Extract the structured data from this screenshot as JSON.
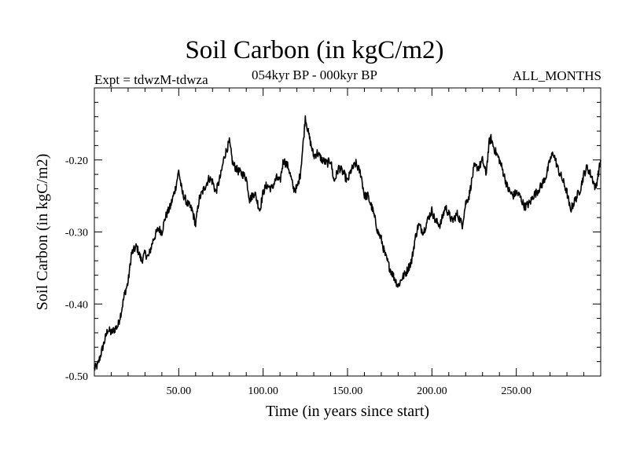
{
  "chart_data": {
    "type": "line",
    "title": "Soil Carbon (in kgC/m2)",
    "subtitle": "054kyr BP - 000kyr BP",
    "left_note": "Expt = tdwzM-tdwza",
    "right_note": "ALL_MONTHS",
    "xlabel": "Time (in years since start)",
    "ylabel": "Soil Carbon (in kgC/m2)",
    "xlim": [
      0,
      300
    ],
    "ylim": [
      -0.5,
      -0.1
    ],
    "x_ticks": [
      50,
      100,
      150,
      200,
      250
    ],
    "x_tick_labels": [
      "50.00",
      "100.00",
      "150.00",
      "200.00",
      "250.00"
    ],
    "y_ticks": [
      -0.5,
      -0.4,
      -0.3,
      -0.2
    ],
    "y_tick_labels": [
      "-0.50",
      "-0.40",
      "-0.30",
      "-0.20"
    ],
    "grid": false,
    "series": [
      {
        "x": [
          0,
          2,
          5,
          8,
          10,
          12,
          14,
          16,
          18,
          20,
          22,
          25,
          28,
          30,
          32,
          35,
          38,
          40,
          42,
          45,
          48,
          50,
          52,
          55,
          58,
          60,
          62,
          65,
          68,
          70,
          72,
          75,
          77,
          80,
          82,
          85,
          88,
          90,
          92,
          95,
          98,
          100,
          102,
          105,
          108,
          110,
          112,
          115,
          118,
          120,
          122,
          124,
          125,
          127,
          130,
          132,
          135,
          138,
          140,
          142,
          145,
          148,
          150,
          152,
          155,
          158,
          160,
          162,
          165,
          168,
          170,
          172,
          175,
          178,
          180,
          182,
          185,
          188,
          190,
          192,
          195,
          198,
          200,
          202,
          205,
          208,
          210,
          212,
          215,
          218,
          220,
          222,
          225,
          228,
          230,
          232,
          234,
          235,
          237,
          240,
          242,
          245,
          248,
          250,
          252,
          255,
          258,
          260,
          262,
          265,
          268,
          270,
          272,
          275,
          277,
          280,
          282,
          285,
          288,
          290,
          292,
          295,
          297,
          300
        ],
        "y": [
          -0.49,
          -0.485,
          -0.46,
          -0.435,
          -0.44,
          -0.435,
          -0.43,
          -0.41,
          -0.385,
          -0.37,
          -0.33,
          -0.32,
          -0.34,
          -0.33,
          -0.335,
          -0.31,
          -0.295,
          -0.3,
          -0.28,
          -0.265,
          -0.24,
          -0.215,
          -0.245,
          -0.26,
          -0.27,
          -0.29,
          -0.255,
          -0.24,
          -0.225,
          -0.23,
          -0.245,
          -0.22,
          -0.195,
          -0.175,
          -0.205,
          -0.215,
          -0.22,
          -0.225,
          -0.255,
          -0.245,
          -0.27,
          -0.245,
          -0.235,
          -0.24,
          -0.225,
          -0.23,
          -0.2,
          -0.21,
          -0.24,
          -0.24,
          -0.22,
          -0.17,
          -0.14,
          -0.165,
          -0.195,
          -0.19,
          -0.2,
          -0.205,
          -0.2,
          -0.23,
          -0.21,
          -0.22,
          -0.23,
          -0.215,
          -0.205,
          -0.22,
          -0.25,
          -0.25,
          -0.27,
          -0.3,
          -0.31,
          -0.33,
          -0.35,
          -0.365,
          -0.375,
          -0.365,
          -0.355,
          -0.34,
          -0.31,
          -0.29,
          -0.3,
          -0.28,
          -0.27,
          -0.285,
          -0.29,
          -0.265,
          -0.275,
          -0.285,
          -0.275,
          -0.29,
          -0.26,
          -0.25,
          -0.21,
          -0.21,
          -0.2,
          -0.22,
          -0.175,
          -0.17,
          -0.185,
          -0.2,
          -0.215,
          -0.24,
          -0.25,
          -0.245,
          -0.25,
          -0.265,
          -0.26,
          -0.25,
          -0.245,
          -0.235,
          -0.22,
          -0.2,
          -0.19,
          -0.215,
          -0.225,
          -0.245,
          -0.27,
          -0.255,
          -0.24,
          -0.22,
          -0.21,
          -0.225,
          -0.24,
          -0.2
        ]
      }
    ]
  }
}
